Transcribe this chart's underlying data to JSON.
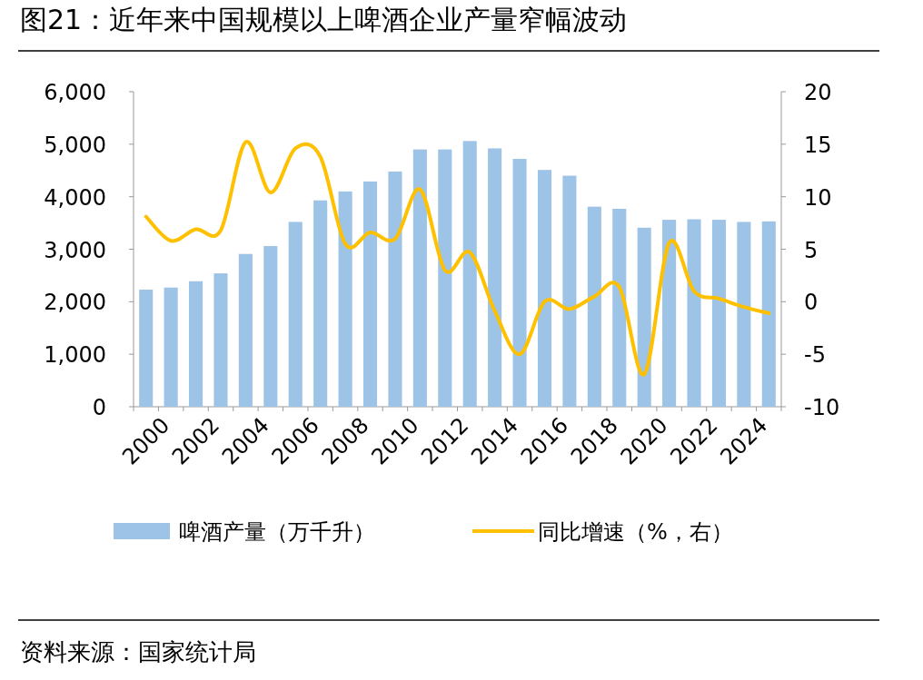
{
  "chart_data": {
    "type": "bar",
    "title": "图21：近年来中国规模以上啤酒企业产量窄幅波动",
    "categories": [
      "2000",
      null,
      "2002",
      null,
      "2004",
      null,
      "2006",
      null,
      "2008",
      null,
      "2010",
      null,
      "2012",
      null,
      "2014",
      null,
      "2016",
      null,
      "2018",
      null,
      "2020",
      null,
      "2022",
      null,
      "2024",
      null
    ],
    "series": [
      {
        "name": "啤酒产量（万千升）",
        "color": "#9dc3e6",
        "values": [
          2230,
          2270,
          2390,
          2540,
          2910,
          3060,
          3520,
          3930,
          4100,
          4290,
          4480,
          4900,
          4900,
          5060,
          4920,
          4720,
          4510,
          4400,
          3810,
          3770,
          3410,
          3560,
          3570,
          3560,
          3520,
          3530
        ]
      },
      {
        "name": "同比增速（%，右）",
        "type": "line",
        "axis": "y2",
        "color": "#ffc000",
        "values": [
          8.1,
          5.8,
          6.9,
          6.8,
          15.2,
          10.4,
          14.6,
          13.8,
          5.5,
          6.6,
          6.0,
          10.7,
          3.0,
          4.7,
          -0.9,
          -5.0,
          0.0,
          -0.7,
          0.5,
          1.4,
          -6.9,
          5.6,
          1.0,
          0.3,
          -0.5,
          -1.1
        ]
      }
    ],
    "ylim": [
      0,
      6000
    ],
    "yticks": [
      {
        "value": 0,
        "label": "0"
      },
      {
        "value": 1000,
        "label": "1,000"
      },
      {
        "value": 2000,
        "label": "2,000"
      },
      {
        "value": 3000,
        "label": "3,000"
      },
      {
        "value": 4000,
        "label": "4,000"
      },
      {
        "value": 5000,
        "label": "5,000"
      },
      {
        "value": 6000,
        "label": "6,000"
      }
    ],
    "y2lim": [
      -10,
      20
    ],
    "y2ticks": [
      -10,
      -5,
      0,
      5,
      10,
      15,
      20
    ],
    "legend": "bottom",
    "annotations": [
      "资料来源：国家统计局"
    ]
  }
}
